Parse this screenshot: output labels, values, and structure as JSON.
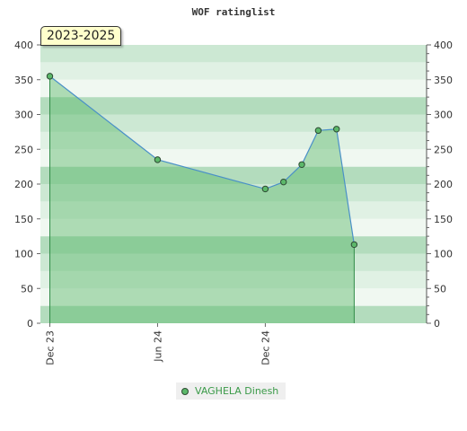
{
  "chart_data": {
    "type": "area",
    "title": "WOF ratinglist",
    "period_label": "2023-2025",
    "yticks": [
      0,
      50,
      100,
      150,
      200,
      250,
      300,
      350,
      400
    ],
    "ylim": [
      0,
      400
    ],
    "xtick_labels": [
      "Dec 23",
      "Jun 24",
      "Dec 24"
    ],
    "xlim": [
      "2023-11-15",
      "2025-09-01"
    ],
    "xtick_dates": [
      "2023-12-01",
      "2024-06-01",
      "2024-12-01"
    ],
    "series": [
      {
        "name": "VAGHELA Dinesh",
        "color": "#5cb86a",
        "line_color": "#4a90c8",
        "points": [
          {
            "x": "2023-12-01",
            "y": 355
          },
          {
            "x": "2024-06-01",
            "y": 235
          },
          {
            "x": "2024-12-01",
            "y": 193
          },
          {
            "x": "2025-01-01",
            "y": 203
          },
          {
            "x": "2025-02-01",
            "y": 228
          },
          {
            "x": "2025-03-01",
            "y": 277
          },
          {
            "x": "2025-04-01",
            "y": 279
          },
          {
            "x": "2025-05-01",
            "y": 113
          }
        ]
      }
    ],
    "grid": true,
    "legend_position": "bottom-center"
  }
}
